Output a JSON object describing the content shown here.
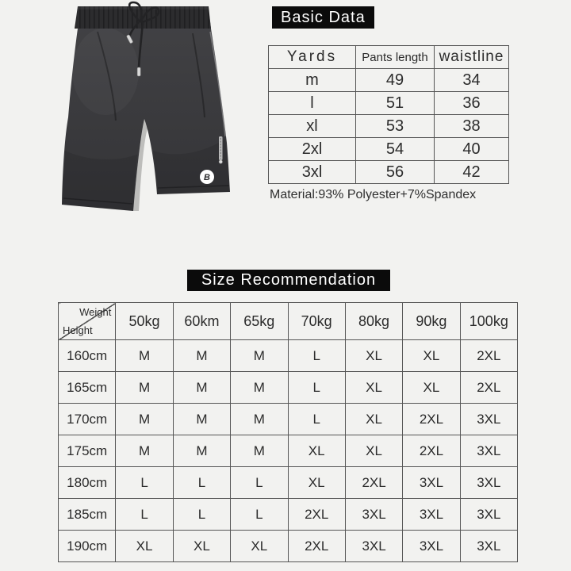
{
  "page": {
    "background": "#f2f2f0",
    "accent_black": "#0b0b0b",
    "border_color": "#555555",
    "text_color": "#2b2b2b"
  },
  "product_image": {
    "description": "black drawstring sport shorts",
    "colors": {
      "fabric": "#3c3c3e",
      "waistband": "#2c2c2e",
      "cord": "#232325",
      "logo_bg": "#ffffff"
    },
    "logo_glyph": "B"
  },
  "basic_data": {
    "title": "Basic Data",
    "table": {
      "headers": [
        "Yards",
        "Pants length",
        "waistline"
      ],
      "rows": [
        [
          "m",
          "49",
          "34"
        ],
        [
          "l",
          "51",
          "36"
        ],
        [
          "xl",
          "53",
          "38"
        ],
        [
          "2xl",
          "54",
          "40"
        ],
        [
          "3xl",
          "56",
          "42"
        ]
      ]
    },
    "material_note": "Material:93% Polyester+7%Spandex"
  },
  "size_recommendation": {
    "title": "Size Recommendation",
    "table": {
      "corner": {
        "top_right": "Weight",
        "bottom_left": "Height"
      },
      "weight_headers": [
        "50kg",
        "60km",
        "65kg",
        "70kg",
        "80kg",
        "90kg",
        "100kg"
      ],
      "rows": [
        [
          "160cm",
          "M",
          "M",
          "M",
          "L",
          "XL",
          "XL",
          "2XL"
        ],
        [
          "165cm",
          "M",
          "M",
          "M",
          "L",
          "XL",
          "XL",
          "2XL"
        ],
        [
          "170cm",
          "M",
          "M",
          "M",
          "L",
          "XL",
          "2XL",
          "3XL"
        ],
        [
          "175cm",
          "M",
          "M",
          "M",
          "XL",
          "XL",
          "2XL",
          "3XL"
        ],
        [
          "180cm",
          "L",
          "L",
          "L",
          "XL",
          "2XL",
          "3XL",
          "3XL"
        ],
        [
          "185cm",
          "L",
          "L",
          "L",
          "2XL",
          "3XL",
          "3XL",
          "3XL"
        ],
        [
          "190cm",
          "XL",
          "XL",
          "XL",
          "2XL",
          "3XL",
          "3XL",
          "3XL"
        ]
      ]
    }
  }
}
